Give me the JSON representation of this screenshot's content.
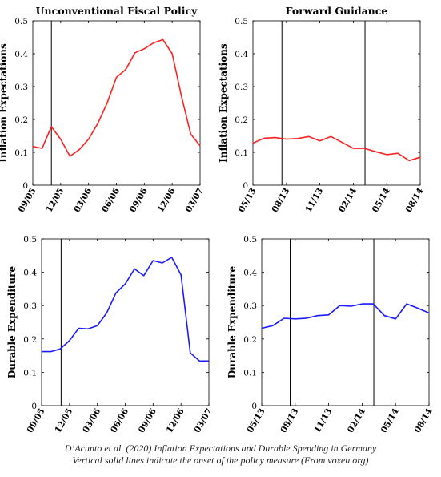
{
  "caption": {
    "line1": "D’Acunto et al. (2020) Inflation Expectations and Durable Spending in Germany",
    "line2": "Vertical solid lines indicate the onset of the policy measure (From voxeu.org)"
  },
  "chart_data": [
    {
      "type": "line",
      "title": "Unconventional Fiscal Policy",
      "ylabel": "Inflation Expectations",
      "xlabel": "",
      "ylim": [
        0,
        0.5
      ],
      "yticks": [
        "0",
        "0.1",
        "0.2",
        "0.3",
        "0.4",
        "0.5"
      ],
      "xticks": [
        "09/05",
        "12/05",
        "03/06",
        "06/06",
        "09/06",
        "12/06",
        "03/07"
      ],
      "color": "#ff2020",
      "series": [
        {
          "values": [
            0.118,
            0.112,
            0.178,
            0.14,
            0.088,
            0.108,
            0.14,
            0.188,
            0.25,
            0.328,
            0.352,
            0.403,
            0.415,
            0.433,
            0.443,
            0.4,
            0.27,
            0.155,
            0.12
          ]
        }
      ],
      "vlines": [
        2
      ],
      "grid": false
    },
    {
      "type": "line",
      "title": "Forward Guidance",
      "ylabel": "Inflation Expectations",
      "xlabel": "",
      "ylim": [
        0,
        0.5
      ],
      "yticks": [
        "0",
        "0.1",
        "0.2",
        "0.3",
        "0.4",
        "0.5"
      ],
      "xticks": [
        "05/13",
        "08/13",
        "11/13",
        "02/14",
        "05/14",
        "08/14"
      ],
      "color": "#ff2020",
      "series": [
        {
          "values": [
            0.128,
            0.143,
            0.145,
            0.14,
            0.142,
            0.148,
            0.135,
            0.148,
            0.13,
            0.112,
            0.112,
            0.102,
            0.093,
            0.097,
            0.075,
            0.085
          ]
        }
      ],
      "vlines": [
        2.6,
        10.05
      ],
      "grid": false
    },
    {
      "type": "line",
      "title": "",
      "ylabel": "Durable Expenditure",
      "xlabel": "",
      "ylim": [
        0,
        0.5
      ],
      "yticks": [
        "0",
        "0.1",
        "0.2",
        "0.3",
        "0.4",
        "0.5"
      ],
      "xticks": [
        "09/05",
        "12/05",
        "03/06",
        "06/06",
        "09/06",
        "12/06",
        "03/07"
      ],
      "color": "#1a1aff",
      "series": [
        {
          "values": [
            0.162,
            0.162,
            0.17,
            0.195,
            0.232,
            0.23,
            0.24,
            0.278,
            0.338,
            0.365,
            0.41,
            0.39,
            0.435,
            0.428,
            0.445,
            0.392,
            0.158,
            0.134,
            0.134
          ]
        }
      ],
      "vlines": [
        2.1
      ],
      "grid": false
    },
    {
      "type": "line",
      "title": "",
      "ylabel": "Durable Expenditure",
      "xlabel": "",
      "ylim": [
        0,
        0.5
      ],
      "yticks": [
        "0",
        "0.1",
        "0.2",
        "0.3",
        "0.4",
        "0.5"
      ],
      "xticks": [
        "05/13",
        "08/13",
        "11/13",
        "02/14",
        "05/14",
        "08/14"
      ],
      "color": "#1a1aff",
      "series": [
        {
          "values": [
            0.232,
            0.24,
            0.262,
            0.26,
            0.262,
            0.27,
            0.272,
            0.3,
            0.298,
            0.305,
            0.305,
            0.27,
            0.26,
            0.305,
            0.292,
            0.278
          ]
        }
      ],
      "vlines": [
        2.55,
        10.05
      ],
      "grid": false
    }
  ]
}
